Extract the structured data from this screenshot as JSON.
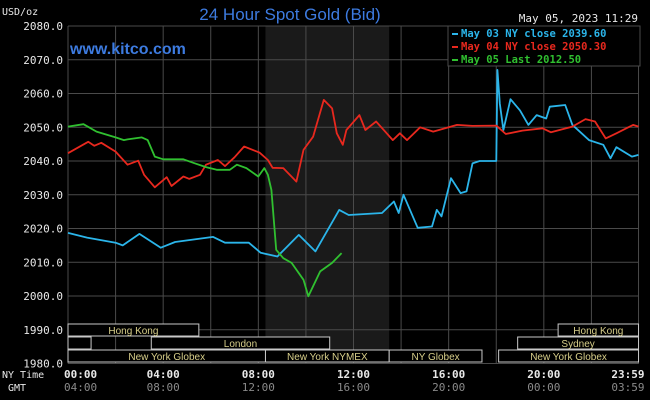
{
  "colors": {
    "background": "#000000",
    "grid": "#4a4a4a",
    "shade": "#1a1a1a",
    "title": "#3d7be0",
    "axis_text": "#e8e8e8",
    "gmt_text": "#8a8a8a",
    "session_text": "#d8cf8a",
    "session_box": "#c9c9c9"
  },
  "chart_data": {
    "type": "line",
    "title": "24 Hour Spot Gold (Bid)",
    "watermark": "www.kitco.com",
    "timestamp": "May 05, 2023 11:29",
    "ylabel": "USD/oz",
    "ylim": [
      1980,
      2080
    ],
    "xlim": [
      0,
      24
    ],
    "grid": true,
    "legend_position": "top-right",
    "yticks": [
      "2080.0",
      "2070.0",
      "2060.0",
      "2050.0",
      "2040.0",
      "2030.0",
      "2020.0",
      "2010.0",
      "2000.0",
      "1990.0",
      "1980.0"
    ],
    "x_row_labels": {
      "ny": "NY Time",
      "gmt": "GMT"
    },
    "xticks": [
      {
        "h": 0,
        "ny": "00:00",
        "gmt": "04:00"
      },
      {
        "h": 4,
        "ny": "04:00",
        "gmt": "08:00"
      },
      {
        "h": 8,
        "ny": "08:00",
        "gmt": "12:00"
      },
      {
        "h": 12,
        "ny": "12:00",
        "gmt": "16:00"
      },
      {
        "h": 16,
        "ny": "16:00",
        "gmt": "20:00"
      },
      {
        "h": 20,
        "ny": "20:00",
        "gmt": "00:00"
      },
      {
        "h": 23.98,
        "ny": "23:59",
        "gmt": "03:59"
      }
    ],
    "shaded_session_hours": [
      8.3,
      13.5
    ],
    "series": [
      {
        "name": "May 03 NY close",
        "legend": "May 03 NY close 2039.60",
        "color": "#2bb5ea",
        "points": [
          [
            0,
            2018.7
          ],
          [
            0.8,
            2017.3
          ],
          [
            2,
            2015.8
          ],
          [
            2.3,
            2015
          ],
          [
            3,
            2018.4
          ],
          [
            3.9,
            2014.3
          ],
          [
            4.5,
            2016
          ],
          [
            6.1,
            2017.5
          ],
          [
            6.6,
            2015.8
          ],
          [
            7.6,
            2015.8
          ],
          [
            8.1,
            2012.8
          ],
          [
            8.8,
            2011.7
          ],
          [
            9.7,
            2018.1
          ],
          [
            10.4,
            2013.2
          ],
          [
            11.4,
            2025.5
          ],
          [
            11.8,
            2024
          ],
          [
            13.2,
            2024.6
          ],
          [
            13.7,
            2028
          ],
          [
            13.9,
            2024.6
          ],
          [
            14.1,
            2030
          ],
          [
            14.7,
            2020.2
          ],
          [
            15.3,
            2020.6
          ],
          [
            15.5,
            2025.5
          ],
          [
            15.7,
            2023.6
          ],
          [
            16.1,
            2034.9
          ],
          [
            16.5,
            2030.5
          ],
          [
            16.75,
            2031
          ],
          [
            17.0,
            2039.3
          ],
          [
            17.3,
            2040
          ],
          [
            18.0,
            2040
          ],
          [
            18.05,
            2067
          ],
          [
            18.15,
            2057
          ],
          [
            18.3,
            2049.2
          ],
          [
            18.6,
            2058.3
          ],
          [
            19.0,
            2055
          ],
          [
            19.35,
            2050.7
          ],
          [
            19.7,
            2053.6
          ],
          [
            20.1,
            2052.6
          ],
          [
            20.25,
            2056.1
          ],
          [
            20.9,
            2056.6
          ],
          [
            21.2,
            2050.7
          ],
          [
            21.9,
            2046.2
          ],
          [
            22.5,
            2044.8
          ],
          [
            22.8,
            2040.8
          ],
          [
            23.05,
            2044.1
          ],
          [
            23.7,
            2041.3
          ],
          [
            23.98,
            2041.8
          ]
        ]
      },
      {
        "name": "May 04 NY close",
        "legend": "May 04 NY close 2050.30",
        "color": "#e8281e",
        "points": [
          [
            0,
            2042.3
          ],
          [
            0.85,
            2045.7
          ],
          [
            1.1,
            2044.5
          ],
          [
            1.4,
            2045.4
          ],
          [
            2,
            2042.8
          ],
          [
            2.5,
            2038.9
          ],
          [
            2.95,
            2040.1
          ],
          [
            3.2,
            2035.9
          ],
          [
            3.65,
            2032.2
          ],
          [
            4.15,
            2035.2
          ],
          [
            4.35,
            2032.6
          ],
          [
            4.85,
            2035.4
          ],
          [
            5.1,
            2034.7
          ],
          [
            5.55,
            2035.9
          ],
          [
            5.8,
            2038.9
          ],
          [
            6.3,
            2040.3
          ],
          [
            6.6,
            2038.5
          ],
          [
            7.0,
            2041.1
          ],
          [
            7.4,
            2044.3
          ],
          [
            8.05,
            2042.5
          ],
          [
            8.4,
            2040.3
          ],
          [
            8.6,
            2038
          ],
          [
            9.05,
            2037.9
          ],
          [
            9.6,
            2033.9
          ],
          [
            9.9,
            2043.3
          ],
          [
            10.3,
            2047.2
          ],
          [
            10.75,
            2058.1
          ],
          [
            11.1,
            2055.6
          ],
          [
            11.3,
            2048.2
          ],
          [
            11.55,
            2044.8
          ],
          [
            11.7,
            2049.2
          ],
          [
            12.25,
            2053.6
          ],
          [
            12.5,
            2049.2
          ],
          [
            12.95,
            2051.7
          ],
          [
            13.65,
            2046.2
          ],
          [
            13.95,
            2048.2
          ],
          [
            14.25,
            2046.2
          ],
          [
            14.8,
            2050
          ],
          [
            15.35,
            2048.7
          ],
          [
            16.35,
            2050.7
          ],
          [
            17.0,
            2050.4
          ],
          [
            18.0,
            2050.5
          ],
          [
            18.4,
            2048
          ],
          [
            19.1,
            2049
          ],
          [
            19.95,
            2049.7
          ],
          [
            20.3,
            2048.5
          ],
          [
            21.2,
            2050.2
          ],
          [
            21.75,
            2052.4
          ],
          [
            22.15,
            2051.7
          ],
          [
            22.6,
            2046.7
          ],
          [
            23.05,
            2048.2
          ],
          [
            23.75,
            2050.7
          ],
          [
            23.98,
            2050.2
          ]
        ]
      },
      {
        "name": "May 05 Last",
        "legend": "May 05 Last 2012.50",
        "color": "#30c030",
        "points": [
          [
            0,
            2050.2
          ],
          [
            0.65,
            2050.9
          ],
          [
            1.2,
            2048.7
          ],
          [
            2,
            2047
          ],
          [
            2.35,
            2046.2
          ],
          [
            2.5,
            2046.4
          ],
          [
            3.1,
            2047
          ],
          [
            3.35,
            2046.2
          ],
          [
            3.65,
            2041.3
          ],
          [
            4.0,
            2040.5
          ],
          [
            4.85,
            2040.5
          ],
          [
            5.25,
            2039.5
          ],
          [
            5.8,
            2038.2
          ],
          [
            6.25,
            2037.4
          ],
          [
            6.8,
            2037.4
          ],
          [
            7.1,
            2038.9
          ],
          [
            7.5,
            2037.9
          ],
          [
            8.0,
            2035.4
          ],
          [
            8.25,
            2037.9
          ],
          [
            8.4,
            2035.9
          ],
          [
            8.55,
            2031.4
          ],
          [
            8.75,
            2013.7
          ],
          [
            9.05,
            2011.2
          ],
          [
            9.4,
            2009.8
          ],
          [
            9.9,
            2004.8
          ],
          [
            10.1,
            1999.9
          ],
          [
            10.6,
            2007.3
          ],
          [
            11.1,
            2009.8
          ],
          [
            11.5,
            2012.7
          ]
        ]
      }
    ],
    "sessions": [
      {
        "label": "Hong Kong",
        "row": 0,
        "start": 0,
        "end": 5.5
      },
      {
        "label": "Hong Kong",
        "row": 0,
        "start": 20.6,
        "end": 23.98
      },
      {
        "label": "",
        "row": 1,
        "start": 0,
        "end": 0.97
      },
      {
        "label": "London",
        "row": 1,
        "start": 3.5,
        "end": 11.0
      },
      {
        "label": "Sydney",
        "row": 1,
        "start": 18.9,
        "end": 23.98
      },
      {
        "label": "New York Globex",
        "row": 2,
        "start": 0,
        "end": 8.3
      },
      {
        "label": "New York NYMEX",
        "row": 2,
        "start": 8.3,
        "end": 13.5
      },
      {
        "label": "NY Globex",
        "row": 2,
        "start": 13.5,
        "end": 17.4
      },
      {
        "label": "New York Globex",
        "row": 2,
        "start": 18.1,
        "end": 23.98
      }
    ]
  }
}
